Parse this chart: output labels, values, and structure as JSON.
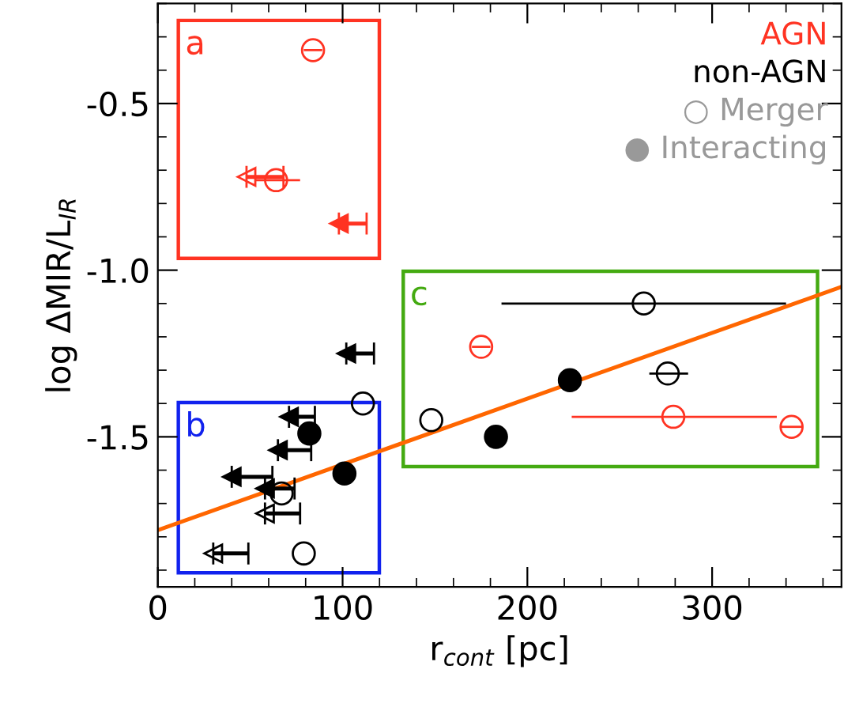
{
  "chart_data": {
    "type": "scatter",
    "xlabel": "r$_{cont}$ [pc]",
    "ylabel": "log ΔMIR/L$_{IR}$",
    "xlim": [
      0,
      370
    ],
    "ylim": [
      -1.95,
      -0.2
    ],
    "xticks": [
      0,
      100,
      200,
      300
    ],
    "yticks": [
      {
        "value": -1.5,
        "label": "-1.5"
      },
      {
        "value": -1.0,
        "label": "-1.0"
      },
      {
        "value": -0.5,
        "label": "-0.5"
      }
    ],
    "grid": false,
    "series": [
      {
        "type": "line",
        "color": "#ff6600",
        "x": [
          0,
          370
        ],
        "values": [
          -1.78,
          -1.05
        ]
      },
      {
        "marker": "circle",
        "colors": [
          "#ff3322",
          "#ff3322",
          "#ff3322",
          "#ff3322",
          "#ff3322"
        ],
        "x": [
          84,
          64,
          175,
          279,
          343
        ],
        "values": [
          -0.34,
          -0.73,
          -1.23,
          -1.44,
          -1.47
        ],
        "xerrors": [
          [
            79,
            89
          ],
          [
            53,
            77
          ],
          [
            170,
            180
          ],
          [
            224,
            335
          ],
          [
            337,
            349
          ]
        ]
      },
      {
        "marker": "circle",
        "colors": [
          "#000000",
          "#000000",
          "#000000",
          "#000000",
          "#000000",
          "#000000"
        ],
        "x": [
          263,
          276,
          148,
          111,
          67,
          79
        ],
        "values": [
          -1.1,
          -1.31,
          -1.45,
          -1.4,
          -1.67,
          -1.85
        ],
        "xerrors": [
          [
            186,
            340
          ],
          [
            266,
            287
          ],
          null,
          null,
          null,
          null
        ]
      },
      {
        "marker": "circle",
        "color": "#000000",
        "x": [
          223,
          183,
          82,
          101
        ],
        "values": [
          -1.33,
          -1.5,
          -1.49,
          -1.61
        ]
      },
      {
        "marker": "triangle",
        "colors": [
          "#ff3322"
        ],
        "x": [
          48
        ],
        "values": [
          -0.72
        ],
        "xerrors": [
          [
            48,
            68
          ]
        ]
      },
      {
        "marker": "triangle",
        "color": "#ff3322",
        "x": [
          98
        ],
        "values": [
          -0.86
        ],
        "xerrors": [
          [
            98,
            113
          ]
        ]
      },
      {
        "marker": "triangle",
        "color": "#000000",
        "x": [
          102,
          71,
          65,
          40,
          58
        ],
        "values": [
          -1.25,
          -1.44,
          -1.54,
          -1.62,
          -1.655
        ],
        "xerrors": [
          [
            102,
            117
          ],
          [
            71,
            85
          ],
          [
            65,
            83
          ],
          [
            40,
            62
          ],
          [
            58,
            74
          ]
        ]
      },
      {
        "marker": "triangle",
        "colors": [
          "#000000",
          "#000000"
        ],
        "x": [
          58,
          30
        ],
        "values": [
          -1.73,
          -1.85
        ],
        "xerrors": [
          [
            58,
            77
          ],
          [
            30,
            49
          ]
        ]
      }
    ],
    "annotations": [
      "a",
      "b",
      "c",
      "AGN",
      "non-AGN",
      "○ Merger",
      "● Interacting"
    ]
  }
}
